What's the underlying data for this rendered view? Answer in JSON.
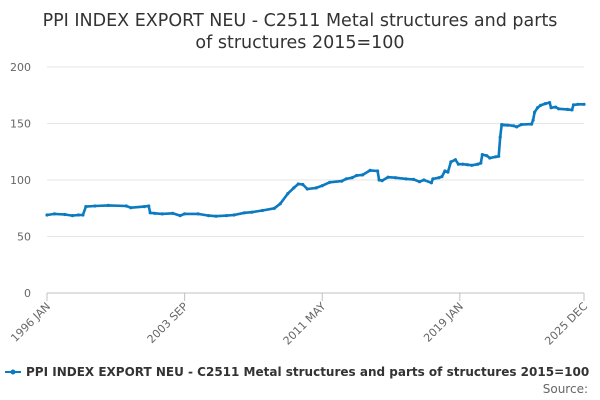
{
  "chart_data": {
    "type": "line",
    "title_lines": [
      "PPI INDEX EXPORT NEU - C2511 Metal structures and parts",
      "of structures 2015=100"
    ],
    "xlabel": "",
    "ylabel": "",
    "ylim": [
      0,
      200
    ],
    "y_ticks": [
      0,
      50,
      100,
      150,
      200
    ],
    "x_ticks": [
      "1996 JAN",
      "2003 SEP",
      "2011 MAY",
      "2019 JAN",
      "2025 DEC"
    ],
    "grid": true,
    "legend_position": "bottom",
    "series": [
      {
        "name": "PPI INDEX EXPORT NEU - C2511 Metal structures and parts of structures 2015=100",
        "color": "#0b7ac1",
        "points": [
          [
            "1996-01",
            69
          ],
          [
            "1996-06",
            70
          ],
          [
            "1997-01",
            69.5
          ],
          [
            "1997-06",
            68.5
          ],
          [
            "1997-10",
            69
          ],
          [
            "1998-01",
            69
          ],
          [
            "1998-03",
            76.5
          ],
          [
            "1998-09",
            77
          ],
          [
            "1999-06",
            77.5
          ],
          [
            "2000-06",
            77
          ],
          [
            "2000-09",
            75.5
          ],
          [
            "2001-06",
            76.5
          ],
          [
            "2001-09",
            77
          ],
          [
            "2001-10",
            71
          ],
          [
            "2002-01",
            70.5
          ],
          [
            "2002-06",
            70
          ],
          [
            "2003-01",
            70.5
          ],
          [
            "2003-06",
            68.5
          ],
          [
            "2003-09",
            70
          ],
          [
            "2004-06",
            70
          ],
          [
            "2005-01",
            68.5
          ],
          [
            "2005-06",
            68
          ],
          [
            "2006-01",
            68.5
          ],
          [
            "2006-06",
            69
          ],
          [
            "2007-01",
            71
          ],
          [
            "2007-06",
            71.5
          ],
          [
            "2008-01",
            73
          ],
          [
            "2008-09",
            75
          ],
          [
            "2009-01",
            79
          ],
          [
            "2009-06",
            88
          ],
          [
            "2009-10",
            93
          ],
          [
            "2010-01",
            96.5
          ],
          [
            "2010-04",
            96
          ],
          [
            "2010-07",
            92
          ],
          [
            "2011-01",
            93
          ],
          [
            "2011-05",
            95
          ],
          [
            "2011-10",
            98
          ],
          [
            "2012-06",
            99
          ],
          [
            "2012-09",
            101
          ],
          [
            "2013-01",
            102
          ],
          [
            "2013-04",
            104
          ],
          [
            "2013-08",
            104.5
          ],
          [
            "2014-01",
            108.5
          ],
          [
            "2014-06",
            108
          ],
          [
            "2014-07",
            100
          ],
          [
            "2014-09",
            99.5
          ],
          [
            "2015-01",
            102.5
          ],
          [
            "2015-06",
            102
          ],
          [
            "2016-01",
            101
          ],
          [
            "2016-06",
            100.5
          ],
          [
            "2016-10",
            98.5
          ],
          [
            "2017-01",
            100
          ],
          [
            "2017-06",
            97.5
          ],
          [
            "2017-07",
            101
          ],
          [
            "2017-11",
            102
          ],
          [
            "2018-01",
            103
          ],
          [
            "2018-03",
            108
          ],
          [
            "2018-05",
            107
          ],
          [
            "2018-07",
            116
          ],
          [
            "2018-10",
            118
          ],
          [
            "2018-12",
            114
          ],
          [
            "2019-03",
            114
          ],
          [
            "2019-06",
            113.5
          ],
          [
            "2019-09",
            113
          ],
          [
            "2020-01",
            114
          ],
          [
            "2020-03",
            115
          ],
          [
            "2020-04",
            122.5
          ],
          [
            "2020-07",
            121.5
          ],
          [
            "2020-09",
            119.5
          ],
          [
            "2021-01",
            120.5
          ],
          [
            "2021-03",
            121
          ],
          [
            "2021-04",
            138
          ],
          [
            "2021-05",
            149
          ],
          [
            "2021-09",
            148.5
          ],
          [
            "2022-01",
            148
          ],
          [
            "2022-03",
            147
          ],
          [
            "2022-06",
            149
          ],
          [
            "2023-01",
            149.5
          ],
          [
            "2023-02",
            153
          ],
          [
            "2023-03",
            160
          ],
          [
            "2023-05",
            164
          ],
          [
            "2023-07",
            166
          ],
          [
            "2023-10",
            167.5
          ],
          [
            "2024-01",
            168.5
          ],
          [
            "2024-02",
            164
          ],
          [
            "2024-05",
            164.5
          ],
          [
            "2024-07",
            163
          ],
          [
            "2025-01",
            162.5
          ],
          [
            "2025-04",
            162
          ],
          [
            "2025-05",
            166.5
          ],
          [
            "2025-08",
            167
          ],
          [
            "2025-12",
            167
          ]
        ]
      }
    ]
  },
  "source_label": "Source:"
}
